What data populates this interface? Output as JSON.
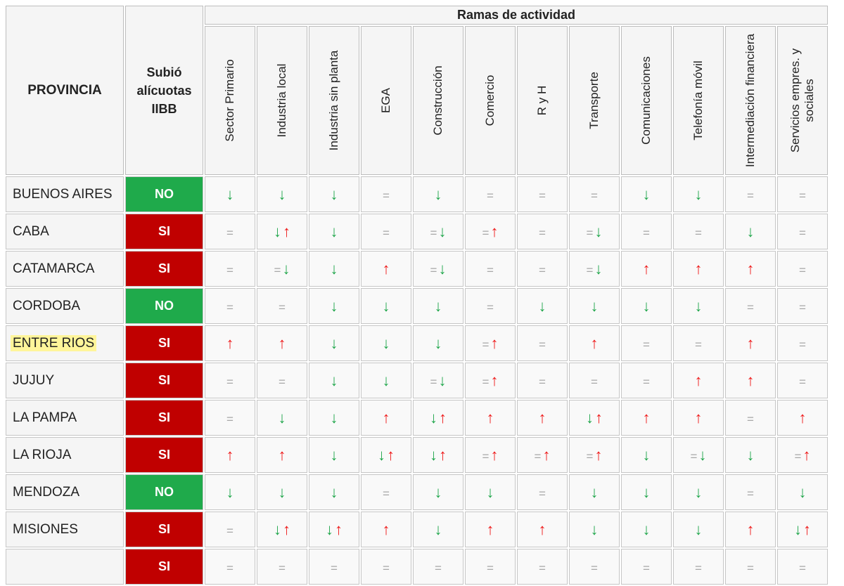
{
  "header": {
    "provincia": "PROVINCIA",
    "subio_lines": [
      "Subió",
      "alícuotas",
      "IIBB"
    ],
    "ramas_title": "Ramas de actividad",
    "branches": [
      "Sector Primario",
      "Industria local",
      "Industria sin planta",
      "EGA",
      "Construcción",
      "Comercio",
      "R y H",
      "Transporte",
      "Comunicaciones",
      "Telefonía móvil",
      "Intermediación financiera",
      "Servicios empres. y sociales"
    ]
  },
  "colors": {
    "no": "#1faa4b",
    "si": "#c00000",
    "up": "#ee1a1a",
    "down": "#1fa64a",
    "eq": "#a8a8a8",
    "highlight": "#fff59a"
  },
  "icons": {
    "down": "down-arrow-icon",
    "up": "up-arrow-icon",
    "equal": "equal-sign-icon"
  },
  "rows": [
    {
      "province": "BUENOS AIRES",
      "subio": "NO",
      "highlight": false,
      "cells": [
        [
          "down"
        ],
        [
          "down"
        ],
        [
          "down"
        ],
        [
          "eq"
        ],
        [
          "down"
        ],
        [
          "eq"
        ],
        [
          "eq"
        ],
        [
          "eq"
        ],
        [
          "down"
        ],
        [
          "down"
        ],
        [
          "eq"
        ],
        [
          "eq"
        ]
      ]
    },
    {
      "province": "CABA",
      "subio": "SI",
      "highlight": false,
      "cells": [
        [
          "eq"
        ],
        [
          "down",
          "up"
        ],
        [
          "down"
        ],
        [
          "eq"
        ],
        [
          "eq",
          "down"
        ],
        [
          "eq",
          "up"
        ],
        [
          "eq"
        ],
        [
          "eq",
          "down"
        ],
        [
          "eq"
        ],
        [
          "eq"
        ],
        [
          "down"
        ],
        [
          "eq"
        ]
      ]
    },
    {
      "province": "CATAMARCA",
      "subio": "SI",
      "highlight": false,
      "cells": [
        [
          "eq"
        ],
        [
          "eq",
          "down"
        ],
        [
          "down"
        ],
        [
          "up"
        ],
        [
          "eq",
          "down"
        ],
        [
          "eq"
        ],
        [
          "eq"
        ],
        [
          "eq",
          "down"
        ],
        [
          "up"
        ],
        [
          "up"
        ],
        [
          "up"
        ],
        [
          "eq"
        ]
      ]
    },
    {
      "province": "CORDOBA",
      "subio": "NO",
      "highlight": false,
      "cells": [
        [
          "eq"
        ],
        [
          "eq"
        ],
        [
          "down"
        ],
        [
          "down"
        ],
        [
          "down"
        ],
        [
          "eq"
        ],
        [
          "down"
        ],
        [
          "down"
        ],
        [
          "down"
        ],
        [
          "down"
        ],
        [
          "eq"
        ],
        [
          "eq"
        ]
      ]
    },
    {
      "province": "ENTRE RIOS",
      "subio": "SI",
      "highlight": true,
      "cells": [
        [
          "up"
        ],
        [
          "up"
        ],
        [
          "down"
        ],
        [
          "down"
        ],
        [
          "down"
        ],
        [
          "eq",
          "up"
        ],
        [
          "eq"
        ],
        [
          "up"
        ],
        [
          "eq"
        ],
        [
          "eq"
        ],
        [
          "up"
        ],
        [
          "eq"
        ]
      ]
    },
    {
      "province": "JUJUY",
      "subio": "SI",
      "highlight": false,
      "cells": [
        [
          "eq"
        ],
        [
          "eq"
        ],
        [
          "down"
        ],
        [
          "down"
        ],
        [
          "eq",
          "down"
        ],
        [
          "eq",
          "up"
        ],
        [
          "eq"
        ],
        [
          "eq"
        ],
        [
          "eq"
        ],
        [
          "up"
        ],
        [
          "up"
        ],
        [
          "eq"
        ]
      ]
    },
    {
      "province": "LA PAMPA",
      "subio": "SI",
      "highlight": false,
      "cells": [
        [
          "eq"
        ],
        [
          "down"
        ],
        [
          "down"
        ],
        [
          "up"
        ],
        [
          "down",
          "up"
        ],
        [
          "up"
        ],
        [
          "up"
        ],
        [
          "down",
          "up"
        ],
        [
          "up"
        ],
        [
          "up"
        ],
        [
          "eq"
        ],
        [
          "up"
        ]
      ]
    },
    {
      "province": "LA RIOJA",
      "subio": "SI",
      "highlight": false,
      "cells": [
        [
          "up"
        ],
        [
          "up"
        ],
        [
          "down"
        ],
        [
          "down",
          "up"
        ],
        [
          "down",
          "up"
        ],
        [
          "eq",
          "up"
        ],
        [
          "eq",
          "up"
        ],
        [
          "eq",
          "up"
        ],
        [
          "down"
        ],
        [
          "eq",
          "down"
        ],
        [
          "down"
        ],
        [
          "eq",
          "up"
        ]
      ]
    },
    {
      "province": "MENDOZA",
      "subio": "NO",
      "highlight": false,
      "cells": [
        [
          "down"
        ],
        [
          "down"
        ],
        [
          "down"
        ],
        [
          "eq"
        ],
        [
          "down"
        ],
        [
          "down"
        ],
        [
          "eq"
        ],
        [
          "down"
        ],
        [
          "down"
        ],
        [
          "down"
        ],
        [
          "eq"
        ],
        [
          "down"
        ]
      ]
    },
    {
      "province": "MISIONES",
      "subio": "SI",
      "highlight": false,
      "cells": [
        [
          "eq"
        ],
        [
          "down",
          "up"
        ],
        [
          "down",
          "up"
        ],
        [
          "up"
        ],
        [
          "down"
        ],
        [
          "up"
        ],
        [
          "up"
        ],
        [
          "down"
        ],
        [
          "down"
        ],
        [
          "down"
        ],
        [
          "up"
        ],
        [
          "down",
          "up"
        ]
      ]
    },
    {
      "province": "",
      "subio": "SI",
      "highlight": false,
      "cells": [
        [
          "eq"
        ],
        [
          "eq"
        ],
        [
          "eq"
        ],
        [
          "eq"
        ],
        [
          "eq"
        ],
        [
          "eq"
        ],
        [
          "eq"
        ],
        [
          "eq"
        ],
        [
          "eq"
        ],
        [
          "eq"
        ],
        [
          "eq"
        ],
        [
          "eq"
        ]
      ]
    }
  ]
}
